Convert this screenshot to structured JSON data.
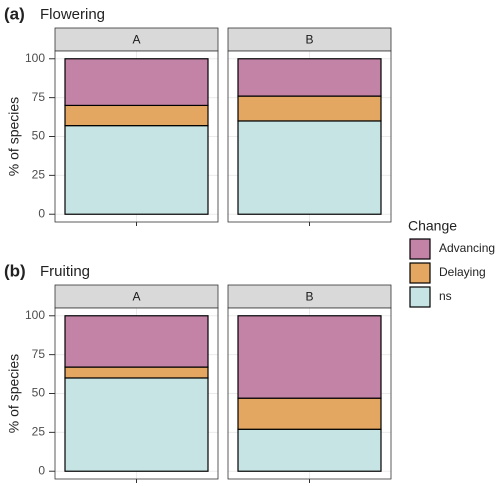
{
  "chart_data": [
    {
      "type": "stacked-bar",
      "tag": "(a)",
      "title": "Flowering",
      "ylabel": "% of species",
      "facets": [
        "A",
        "B"
      ],
      "ylim": [
        0,
        100
      ],
      "yticks": [
        0,
        25,
        50,
        75,
        100
      ],
      "grid": true,
      "legend": "right",
      "legend_title": "Change",
      "series": [
        {
          "name": "ns",
          "color": "#c5e4e3",
          "values": [
            57,
            60
          ]
        },
        {
          "name": "Delaying",
          "color": "#e3a762",
          "values": [
            13,
            16
          ]
        },
        {
          "name": "Advancing",
          "color": "#c283a7",
          "values": [
            30,
            24
          ]
        }
      ]
    },
    {
      "type": "stacked-bar",
      "tag": "(b)",
      "title": "Fruiting",
      "ylabel": "% of species",
      "facets": [
        "A",
        "B"
      ],
      "ylim": [
        0,
        100
      ],
      "yticks": [
        0,
        25,
        50,
        75,
        100
      ],
      "grid": true,
      "series": [
        {
          "name": "ns",
          "color": "#c5e4e3",
          "values": [
            60,
            27
          ]
        },
        {
          "name": "Delaying",
          "color": "#e3a762",
          "values": [
            7,
            20
          ]
        },
        {
          "name": "Advancing",
          "color": "#c283a7",
          "values": [
            33,
            53
          ]
        }
      ]
    }
  ]
}
